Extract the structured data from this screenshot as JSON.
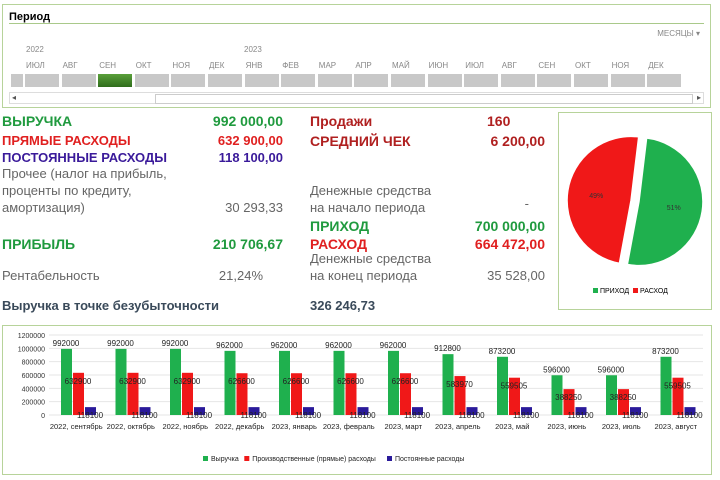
{
  "slicer": {
    "title": "Период",
    "level": "МЕСЯЦЫ",
    "years": [
      "2022",
      "2023"
    ],
    "months": [
      "ИЮЛ",
      "АВГ",
      "СЕН",
      "ОКТ",
      "НОЯ",
      "ДЕК",
      "ЯНВ",
      "ФЕВ",
      "МАР",
      "АПР",
      "МАЙ",
      "ИЮН",
      "ИЮЛ",
      "АВГ",
      "СЕН",
      "ОКТ",
      "НОЯ",
      "ДЕК"
    ],
    "selected_index": 2
  },
  "kpi": {
    "revenue_label": "ВЫРУЧКА",
    "revenue": "992 000,00",
    "direct_label": "ПРЯМЫЕ РАСХОДЫ",
    "direct": "632 900,00",
    "fixed_label": "ПОСТОЯННЫЕ РАСХОДЫ",
    "fixed": "118 100,00",
    "other_l1": "Прочее (налог на прибыль,",
    "other_l2": "проценты по кредиту,",
    "other_l3": "амортизация)",
    "other": "30 293,33",
    "profit_label": "ПРИБЫЛЬ",
    "profit": "210 706,67",
    "margin_label": "Рентабельность",
    "margin": "21,24%",
    "breakeven_label": "Выручка в точке безубыточности",
    "breakeven": "326 246,73",
    "sales_label": "Продажи",
    "sales": "160",
    "avg_label": "СРЕДНИЙ ЧЕК",
    "avg": "6 200,00",
    "cash_start_l1": "Денежные средства",
    "cash_start_l2": "на начало периода",
    "cash_start": "-",
    "income_label": "ПРИХОД",
    "income": "700 000,00",
    "expense_label": "РАСХОД",
    "expense": "664 472,00",
    "cash_end_l1": "Денежные средства",
    "cash_end_l2": "на конец периода",
    "cash_end": "35 528,00"
  },
  "pie": {
    "slices": [
      {
        "name": "ПРИХОД",
        "value": 51,
        "label": "51%",
        "color": "#1fb04e"
      },
      {
        "name": "РАСХОД",
        "value": 49,
        "label": "49%",
        "color": "#f01818"
      }
    ]
  },
  "chart_data": {
    "type": "bar",
    "categories": [
      "2022, сентябрь",
      "2022, октябрь",
      "2022, ноябрь",
      "2022, декабрь",
      "2023, январь",
      "2023, февраль",
      "2023, март",
      "2023, апрель",
      "2023, май",
      "2023, июнь",
      "2023, июль",
      "2023, август"
    ],
    "series": [
      {
        "name": "Выручка",
        "color": "#1fb04e",
        "values": [
          992000,
          992000,
          992000,
          962000,
          962000,
          962000,
          962000,
          912800,
          873200,
          596000,
          596000,
          873200
        ]
      },
      {
        "name": "Производственные (прямые) расходы",
        "color": "#f01818",
        "values": [
          632900,
          632900,
          632900,
          626600,
          626600,
          626600,
          626600,
          583970,
          559505,
          388250,
          388250,
          559505
        ]
      },
      {
        "name": "Постоянные расходы",
        "color": "#2a1a9a",
        "values": [
          118100,
          118100,
          118100,
          118100,
          118100,
          118100,
          118100,
          118100,
          118100,
          118100,
          118100,
          118100
        ]
      }
    ],
    "ylim": [
      0,
      1200000
    ],
    "yticks": [
      "0",
      "200000",
      "400000",
      "600000",
      "800000",
      "1000000",
      "1200000"
    ],
    "legend": "bottom"
  }
}
